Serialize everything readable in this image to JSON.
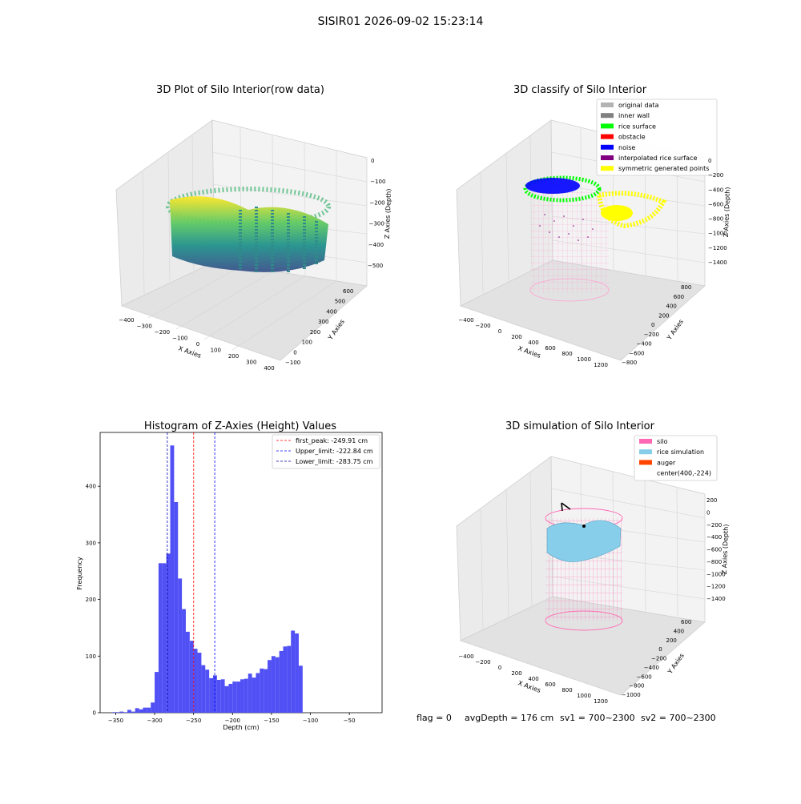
{
  "figure": {
    "title": "SISIR01 2026-09-02 15:23:14",
    "status_line": {
      "flag": "flag = 0",
      "avg_depth": "avgDepth = 176 cm",
      "sv1": "sv1 = 700~2300",
      "sv2": "sv2 = 700~2300"
    }
  },
  "chart_data": [
    {
      "type": "scatter",
      "projection": "3d",
      "title": "3D Plot of Silo Interior(row data)",
      "xlabel": "X Axies",
      "ylabel": "Y Axies",
      "zlabel": "Z Axies (Depth)",
      "x_ticks": [
        "−400",
        "−300",
        "−200",
        "−100",
        "0",
        "100",
        "200",
        "300",
        "400"
      ],
      "y_ticks": [
        "−100",
        "0",
        "100",
        "200",
        "300",
        "400",
        "500",
        "600"
      ],
      "z_ticks": [
        "0",
        "−100",
        "−200",
        "−300",
        "−400",
        "−500"
      ],
      "colormap": "viridis",
      "points": {
        "x_range": [
          -320,
          250
        ],
        "y_range": [
          -60,
          560
        ],
        "z_range": [
          -530,
          -240
        ]
      }
    },
    {
      "type": "scatter",
      "projection": "3d",
      "title": "3D classify of Silo Interior",
      "xlabel": "X Axies",
      "ylabel": "Y Axies",
      "zlabel": "Z Axies (Depth)",
      "x_ticks": [
        "−400",
        "−200",
        "0",
        "200",
        "400",
        "600",
        "800",
        "1000",
        "1200"
      ],
      "y_ticks": [
        "−800",
        "−600",
        "−400",
        "−200",
        "0",
        "200",
        "400",
        "600",
        "800"
      ],
      "z_ticks": [
        "0",
        "−200",
        "−400",
        "−600",
        "−800",
        "−1000",
        "−1200",
        "−1400"
      ],
      "legend_position": "upper-right",
      "legend": [
        {
          "label": "original data",
          "color": "#b3b3b3"
        },
        {
          "label": "inner wall",
          "color": "#808080"
        },
        {
          "label": "rice surface",
          "color": "#00ff00"
        },
        {
          "label": "obstacle",
          "color": "#ff0000"
        },
        {
          "label": "noise",
          "color": "#0000ff"
        },
        {
          "label": "interpolated rice surface",
          "color": "#800080"
        },
        {
          "label": "symmetric generated points",
          "color": "#ffff00"
        }
      ],
      "silo_outline_color": "#ff99cc"
    },
    {
      "type": "bar",
      "title": "Histogram of Z-Axies (Height) Values",
      "xlabel": "Depth (cm)",
      "ylabel": "Frequency",
      "xlim": [
        -370,
        -8
      ],
      "ylim": [
        0,
        495
      ],
      "x_ticks": [
        -350,
        -300,
        -250,
        -200,
        -150,
        -100,
        -50
      ],
      "y_ticks": [
        0,
        100,
        200,
        300,
        400
      ],
      "bar_color": "#5050f5",
      "bin_start": -355,
      "bin_width": 5,
      "values": [
        1,
        1,
        2,
        1,
        5,
        2,
        8,
        6,
        9,
        9,
        18,
        72,
        264,
        264,
        281,
        472,
        372,
        237,
        183,
        143,
        127,
        113,
        106,
        84,
        76,
        61,
        66,
        58,
        59,
        47,
        51,
        55,
        55,
        59,
        60,
        69,
        62,
        70,
        78,
        77,
        93,
        100,
        98,
        109,
        117,
        118,
        145,
        140,
        83
      ],
      "vlines": [
        {
          "label": "first_peak: -249.91 cm",
          "x": -249.91,
          "color": "#ff0000"
        },
        {
          "label": "Upper_limit: -222.84 cm",
          "x": -222.84,
          "color": "#0000ff"
        },
        {
          "label": "Lower_limit: -283.75 cm",
          "x": -283.75,
          "color": "#0000aa"
        }
      ],
      "legend_position": "upper-right"
    },
    {
      "type": "surface",
      "projection": "3d",
      "title": "3D simulation of Silo Interior",
      "xlabel": "X Axies",
      "ylabel": "Y Axies",
      "zlabel": "Z Axies (Depth)",
      "x_ticks": [
        "−400",
        "−200",
        "0",
        "200",
        "400",
        "600",
        "800",
        "1000",
        "1200"
      ],
      "y_ticks": [
        "−1000",
        "−800",
        "−600",
        "−400",
        "−200",
        "0",
        "200",
        "400",
        "600"
      ],
      "z_ticks": [
        "200",
        "0",
        "−200",
        "−400",
        "−600",
        "−800",
        "−1000",
        "−1200",
        "−1400"
      ],
      "legend_position": "upper-right",
      "legend": [
        {
          "label": "silo",
          "color": "#ff69b4"
        },
        {
          "label": "rice simulation",
          "color": "#87ceeb"
        },
        {
          "label": "auger",
          "color": "#ff4500"
        },
        {
          "label": "center(400,-224)",
          "color": ""
        }
      ]
    }
  ]
}
